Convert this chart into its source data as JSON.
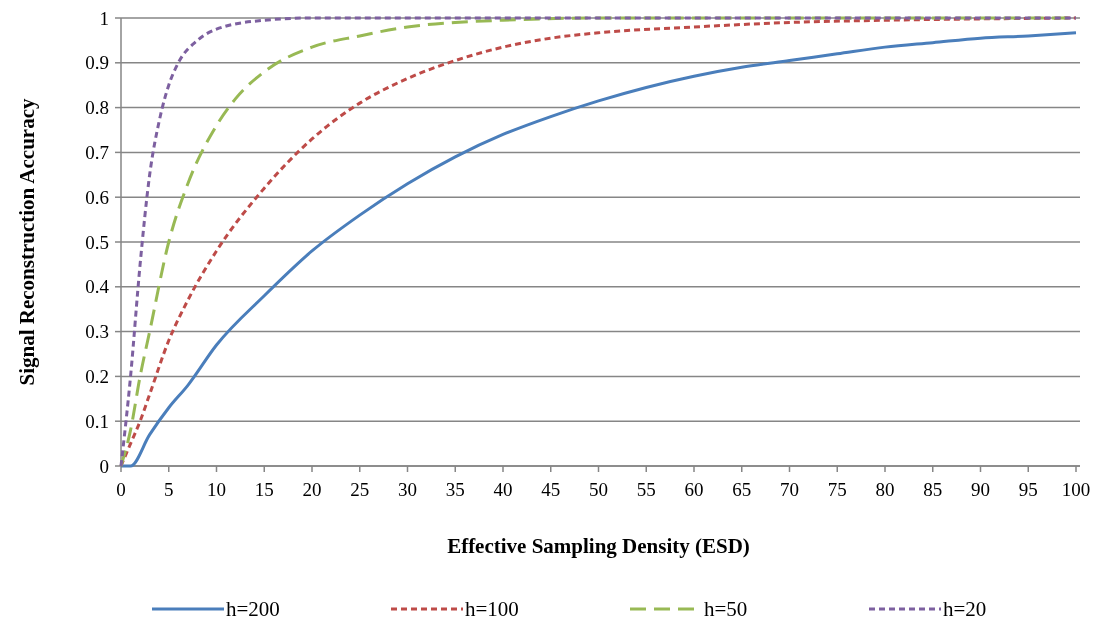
{
  "chart_data": {
    "type": "line",
    "xlabel": "Effective Sampling Density (ESD)",
    "ylabel": "Signal Reconstruction Accuracy",
    "xlim": [
      0,
      100
    ],
    "xticks": [
      0,
      5,
      10,
      15,
      20,
      25,
      30,
      35,
      40,
      45,
      50,
      55,
      60,
      65,
      70,
      75,
      80,
      85,
      90,
      95,
      100
    ],
    "ylim": [
      0,
      1
    ],
    "yticks": [
      0,
      0.1,
      0.2,
      0.3,
      0.4,
      0.5,
      0.6,
      0.7,
      0.8,
      0.9,
      1
    ],
    "grid": "y",
    "legend": "bottom",
    "series": [
      {
        "name": "h=200",
        "color": "#4a7ebb",
        "line_style": "solid",
        "x": [
          0,
          1,
          3,
          5,
          7,
          10,
          15,
          20,
          25,
          30,
          35,
          40,
          45,
          50,
          55,
          60,
          65,
          70,
          75,
          80,
          85,
          90,
          95,
          100
        ],
        "values": [
          0,
          0,
          0.07,
          0.13,
          0.18,
          0.27,
          0.38,
          0.48,
          0.56,
          0.63,
          0.69,
          0.74,
          0.78,
          0.815,
          0.845,
          0.87,
          0.89,
          0.905,
          0.92,
          0.935,
          0.945,
          0.955,
          0.96,
          0.967
        ]
      },
      {
        "name": "h=100",
        "color": "#be4b48",
        "line_style": "dotted",
        "x": [
          0,
          1,
          2,
          3,
          5,
          7,
          10,
          15,
          20,
          25,
          30,
          35,
          40,
          45,
          50,
          60,
          70,
          80,
          90,
          100
        ],
        "values": [
          0,
          0.05,
          0.1,
          0.16,
          0.28,
          0.37,
          0.48,
          0.62,
          0.73,
          0.81,
          0.865,
          0.905,
          0.935,
          0.955,
          0.967,
          0.98,
          0.99,
          0.995,
          0.998,
          1
        ]
      },
      {
        "name": "h=50",
        "color": "#98b954",
        "line_style": "dashed",
        "x": [
          0,
          1,
          2,
          3,
          5,
          7,
          10,
          12,
          15,
          20,
          25,
          30,
          35,
          40,
          50,
          60,
          80,
          100
        ],
        "values": [
          0,
          0.08,
          0.2,
          0.3,
          0.5,
          0.63,
          0.76,
          0.82,
          0.88,
          0.935,
          0.96,
          0.98,
          0.99,
          0.995,
          1,
          1,
          1,
          1
        ]
      },
      {
        "name": "h=20",
        "color": "#7d60a0",
        "line_style": "dotted",
        "x": [
          0,
          1,
          2,
          3,
          4,
          5,
          6,
          8,
          10,
          15,
          20,
          40,
          60,
          80,
          100
        ],
        "values": [
          0,
          0.2,
          0.45,
          0.65,
          0.77,
          0.85,
          0.9,
          0.95,
          0.975,
          0.995,
          1,
          1,
          1,
          1,
          1
        ]
      }
    ]
  }
}
